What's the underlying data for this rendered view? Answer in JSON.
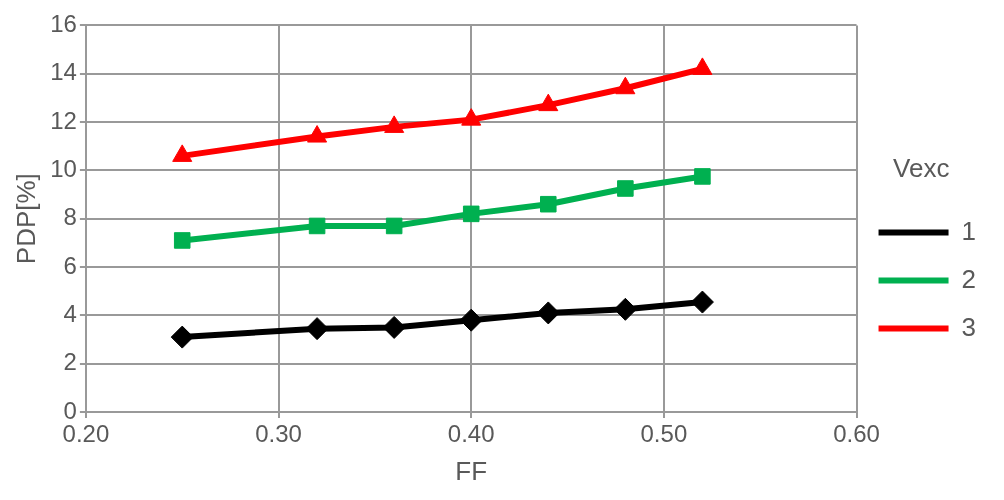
{
  "chart_data": {
    "type": "line",
    "xlabel": "FF",
    "ylabel": "PDP[%]",
    "legend_title": "Vexc",
    "legend": "right",
    "grid": true,
    "x": [
      0.25,
      0.32,
      0.36,
      0.4,
      0.44,
      0.48,
      0.52
    ],
    "xlim": [
      0.2,
      0.6
    ],
    "xticks": [
      {
        "value": 0.2,
        "label": "0.20"
      },
      {
        "value": 0.3,
        "label": "0.30"
      },
      {
        "value": 0.4,
        "label": "0.40"
      },
      {
        "value": 0.5,
        "label": "0.50"
      },
      {
        "value": 0.6,
        "label": "0.60"
      }
    ],
    "ylim": [
      0,
      16
    ],
    "yticks": [
      0,
      2,
      4,
      6,
      8,
      10,
      12,
      14,
      16
    ],
    "series": [
      {
        "name": "1",
        "color": "#000000",
        "marker": "diamond",
        "values": [
          3.1,
          3.45,
          3.5,
          3.8,
          4.1,
          4.25,
          4.55
        ]
      },
      {
        "name": "2",
        "color": "#00b050",
        "marker": "square",
        "values": [
          7.1,
          7.7,
          7.7,
          8.2,
          8.6,
          9.25,
          9.75
        ]
      },
      {
        "name": "3",
        "color": "#ff0000",
        "marker": "triangle",
        "values": [
          10.6,
          11.4,
          11.8,
          12.1,
          12.7,
          13.4,
          14.2
        ]
      }
    ]
  }
}
